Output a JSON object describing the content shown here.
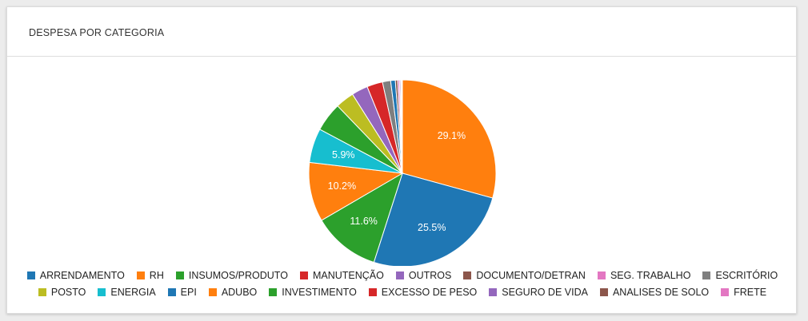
{
  "card": {
    "title": "DESPESA POR CATEGORIA"
  },
  "chart_data": {
    "type": "pie",
    "title": "DESPESA POR CATEGORIA",
    "legend_placement": "bottom",
    "slices": [
      {
        "label": "ARRENDAMENTO",
        "value": 25.5,
        "color": "#1f77b4",
        "data_label": "25.5%"
      },
      {
        "label": "RH",
        "value": 29.1,
        "color": "#ff7f0e",
        "data_label": "29.1%"
      },
      {
        "label": "INSUMOS/PRODUTO",
        "value": 11.6,
        "color": "#2ca02c",
        "data_label": "11.6%"
      },
      {
        "label": "MANUTENÇÃO",
        "value": 2.7,
        "color": "#d62728",
        "data_label": ""
      },
      {
        "label": "OUTROS",
        "value": 2.8,
        "color": "#9467bd",
        "data_label": ""
      },
      {
        "label": "DOCUMENTO/DETRAN",
        "value": 0.1,
        "color": "#8c564b",
        "data_label": ""
      },
      {
        "label": "SEG. TRABALHO",
        "value": 0.1,
        "color": "#e377c2",
        "data_label": ""
      },
      {
        "label": "ESCRITÓRIO",
        "value": 1.4,
        "color": "#7f7f7f",
        "data_label": ""
      },
      {
        "label": "POSTO",
        "value": 3.2,
        "color": "#bcbd22",
        "data_label": ""
      },
      {
        "label": "ENERGIA",
        "value": 5.9,
        "color": "#17becf",
        "data_label": "5.9%"
      },
      {
        "label": "EPI",
        "value": 0.8,
        "color": "#1f77b4",
        "data_label": ""
      },
      {
        "label": "ADUBO",
        "value": 10.2,
        "color": "#ff7f0e",
        "data_label": "10.2%"
      },
      {
        "label": "INVESTIMENTO",
        "value": 5.0,
        "color": "#2ca02c",
        "data_label": ""
      },
      {
        "label": "EXCESSO DE PESO",
        "value": 0.1,
        "color": "#d62728",
        "data_label": ""
      },
      {
        "label": "SEGURO DE VIDA",
        "value": 0.2,
        "color": "#9467bd",
        "data_label": ""
      },
      {
        "label": "ANALISES DE SOLO",
        "value": 0.4,
        "color": "#8c564b",
        "data_label": ""
      },
      {
        "label": "FRETE",
        "value": 0.3,
        "color": "#e377c2",
        "data_label": ""
      }
    ],
    "draw_order": [
      "RH",
      "ARRENDAMENTO",
      "INSUMOS/PRODUTO",
      "ADUBO",
      "ENERGIA",
      "INVESTIMENTO",
      "POSTO",
      "OUTROS",
      "MANUTENÇÃO",
      "ESCRITÓRIO",
      "EPI",
      "ANALISES DE SOLO",
      "FRETE",
      "SEGURO DE VIDA",
      "DOCUMENTO/DETRAN",
      "SEG. TRABALHO",
      "EXCESSO DE PESO"
    ],
    "legend_rows": [
      [
        "ARRENDAMENTO",
        "RH",
        "INSUMOS/PRODUTO",
        "MANUTENÇÃO",
        "OUTROS",
        "DOCUMENTO/DETRAN",
        "SEG. TRABALHO",
        "ESCRITÓRIO"
      ],
      [
        "POSTO",
        "ENERGIA",
        "EPI",
        "ADUBO",
        "INVESTIMENTO",
        "EXCESSO DE PESO",
        "SEGURO DE VIDA",
        "ANALISES DE SOLO",
        "FRETE"
      ]
    ]
  }
}
